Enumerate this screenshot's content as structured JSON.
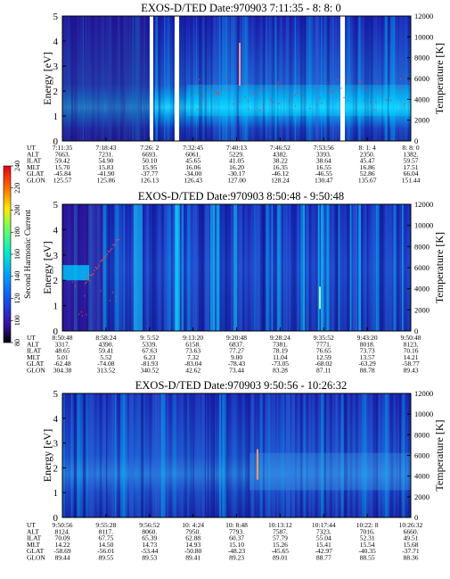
{
  "colorbar": {
    "label": "Second Harmonic Current",
    "ticks": [
      "80",
      "100",
      "120",
      "140",
      "160",
      "180",
      "200",
      "220",
      "240"
    ]
  },
  "axis_labels": {
    "energy": "Energy [eV]",
    "temperature": "Temperature [K]"
  },
  "colors": {
    "background": "#1a1ab8",
    "low": "#2a0a78",
    "high": "#00c8ff"
  },
  "chart_data": [
    {
      "type": "heatmap",
      "title": "EXOS-D/TED   Date:970903  7:11:35 - 8: 8: 0",
      "ylabel": "Energy [eV]",
      "y2label": "Temperature [K]",
      "ylim": [
        0,
        5
      ],
      "y2lim": [
        0,
        12000
      ],
      "yticks": [
        "0",
        "1",
        "2",
        "3",
        "4",
        "5"
      ],
      "y2ticks": [
        "0",
        "2000",
        "4000",
        "6000",
        "8000",
        "10000",
        "12000"
      ],
      "orbit_rows": [
        {
          "label": "UT",
          "values": [
            "7:11:35",
            "7:18:43",
            "7:26: 2",
            "7:32:45",
            "7:40:13",
            "7:46:52",
            "7:53:56",
            "8: 1: 4",
            "8: 8: 0"
          ]
        },
        {
          "label": "ALT",
          "values": [
            "7663.",
            "7231.",
            "6693.",
            "6061.",
            "5229.",
            "4382.",
            "3393.",
            "2350.",
            "1382."
          ]
        },
        {
          "label": "ILAT",
          "values": [
            "59.42",
            "54.90",
            "50.10",
            "45.65",
            "41.05",
            "38.22",
            "38.64",
            "45.47",
            "59.57"
          ]
        },
        {
          "label": "MLT",
          "values": [
            "15.70",
            "15.83",
            "15.95",
            "16.06",
            "16.20",
            "16.35",
            "16.55",
            "16.86",
            "17.51"
          ]
        },
        {
          "label": "GLAT",
          "values": [
            "-45.84",
            "-41.90",
            "-37.77",
            "-34.00",
            "-30.17",
            "-46.12",
            "-46.55",
            "52.86",
            "66.04"
          ]
        },
        {
          "label": "GLON",
          "values": [
            "125.57",
            "125.86",
            "126.13",
            "126.43",
            "127.00",
            "128.24",
            "130.47",
            "135.67",
            "151.44"
          ]
        }
      ]
    },
    {
      "type": "heatmap",
      "title": "EXOS-D/TED   Date:970903  8:50:48 - 9:50:48",
      "ylabel": "Energy [eV]",
      "y2label": "Temperature [K]",
      "ylim": [
        0,
        5
      ],
      "y2lim": [
        0,
        12000
      ],
      "yticks": [
        "0",
        "1",
        "2",
        "3",
        "4",
        "5"
      ],
      "y2ticks": [
        "0",
        "2000",
        "4000",
        "6000",
        "8000",
        "10000",
        "12000"
      ],
      "orbit_rows": [
        {
          "label": "UT",
          "values": [
            "8:50:48",
            "8:58:24",
            "9: 5:52",
            "9:13:20",
            "9:20:48",
            "9:28:24",
            "9:35:52",
            "9:43:20",
            "9:50:48"
          ]
        },
        {
          "label": "ALT",
          "values": [
            "3317.",
            "4390.",
            "5339.",
            "6158.",
            "6837.",
            "7381.",
            "7771.",
            "8018.",
            "8123."
          ]
        },
        {
          "label": "ILAT",
          "values": [
            "48.65",
            "59.41",
            "67.63",
            "73.63",
            "77.27",
            "78.19",
            "76.65",
            "73.73",
            "70.16"
          ]
        },
        {
          "label": "MLT",
          "values": [
            "5.01",
            "5.52",
            "6.23",
            "7.32",
            "9.00",
            "11.04",
            "12.59",
            "13.57",
            "14.21"
          ]
        },
        {
          "label": "GLAT",
          "values": [
            "-62.48",
            "-74.08",
            "-81.93",
            "-83.04",
            "-78.43",
            "-73.05",
            "-68.02",
            "-63.29",
            "-58.77"
          ]
        },
        {
          "label": "GLON",
          "values": [
            "304.38",
            "313.52",
            "340.52",
            "42.62",
            "73.44",
            "83.28",
            "87.11",
            "88.78",
            "89.43"
          ]
        }
      ]
    },
    {
      "type": "heatmap",
      "title": "EXOS-D/TED   Date:970903  9:50:56 - 10:26:32",
      "ylabel": "Energy [eV]",
      "y2label": "Temperature [K]",
      "ylim": [
        0,
        5
      ],
      "y2lim": [
        0,
        12000
      ],
      "yticks": [
        "0",
        "1",
        "2",
        "3",
        "4",
        "5"
      ],
      "y2ticks": [
        "0",
        "2000",
        "4000",
        "6000",
        "8000",
        "10000",
        "12000"
      ],
      "orbit_rows": [
        {
          "label": "UT",
          "values": [
            "9:50:56",
            "9:55:28",
            "9:56:52",
            "10: 4:24",
            "10: 8:48",
            "10:13:12",
            "10:17:44",
            "10:22: 8",
            "10:26:32"
          ]
        },
        {
          "label": "ALT",
          "values": [
            "8124.",
            "8117.",
            "8060.",
            "7950.",
            "7793.",
            "7587.",
            "7323.",
            "7016.",
            "6660."
          ]
        },
        {
          "label": "ILAT",
          "values": [
            "70.09",
            "67.75",
            "65.39",
            "62.88",
            "60.37",
            "57.79",
            "55.04",
            "52.31",
            "49.51"
          ]
        },
        {
          "label": "MLT",
          "values": [
            "14.22",
            "14.50",
            "14.73",
            "14.93",
            "15.10",
            "15.26",
            "15.41",
            "15.54",
            "15.68"
          ]
        },
        {
          "label": "GLAT",
          "values": [
            "-58.69",
            "-56.01",
            "-53.44",
            "-50.80",
            "-48.23",
            "-45.65",
            "-42.97",
            "-40.35",
            "-37.71"
          ]
        },
        {
          "label": "GLON",
          "values": [
            "89.44",
            "89.55",
            "89.53",
            "89.41",
            "89.23",
            "89.01",
            "88.77",
            "88.55",
            "88.36"
          ]
        }
      ]
    }
  ]
}
